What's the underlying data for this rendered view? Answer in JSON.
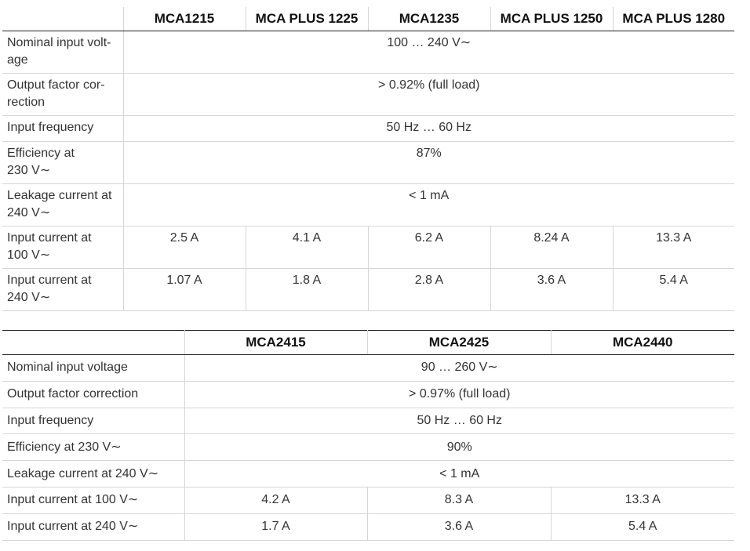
{
  "table1": {
    "header": {
      "corner": "",
      "models": [
        "MCA1215",
        "MCA PLUS 1225",
        "MCA1235",
        "MCA PLUS 1250",
        "MCA PLUS 1280"
      ]
    },
    "rows": {
      "nominal_input_voltage": {
        "label": "Nominal input volt-\nage",
        "value": "100 … 240 V∼"
      },
      "output_factor_correction": {
        "label": "Output factor cor-\nrection",
        "value": "> 0.92% (full load)"
      },
      "input_frequency": {
        "label": "Input frequency",
        "value": "50 Hz … 60 Hz"
      },
      "efficiency": {
        "label": "Efficiency at\n 230 V∼",
        "value": "87%"
      },
      "leakage_current": {
        "label": "Leakage current at\n 240 V∼",
        "value": "< 1 mA"
      },
      "input_current_100": {
        "label": "Input current at\n 100 V∼",
        "values": [
          "2.5 A",
          "4.1 A",
          "6.2 A",
          "8.24 A",
          "13.3 A"
        ]
      },
      "input_current_240": {
        "label": "Input current at\n 240 V∼",
        "values": [
          "1.07 A",
          "1.8 A",
          "2.8 A",
          "3.6 A",
          "5.4 A"
        ]
      }
    }
  },
  "table2": {
    "header": {
      "corner": "",
      "models": [
        "MCA2415",
        "MCA2425",
        "MCA2440"
      ]
    },
    "rows": {
      "nominal_input_voltage": {
        "label": "Nominal input voltage",
        "value": "90 … 260 V∼"
      },
      "output_factor_correction": {
        "label": "Output factor correction",
        "value": "> 0.97% (full load)"
      },
      "input_frequency": {
        "label": "Input frequency",
        "value": "50 Hz … 60 Hz"
      },
      "efficiency": {
        "label": "Efficiency at 230 V∼",
        "value": "90%"
      },
      "leakage_current": {
        "label": "Leakage current at 240 V∼",
        "value": "< 1 mA"
      },
      "input_current_100": {
        "label": "Input current at 100 V∼",
        "values": [
          "4.2 A",
          "8.3 A",
          "13.3 A"
        ]
      },
      "input_current_240": {
        "label": "Input current at 240 V∼",
        "values": [
          "1.7 A",
          "3.6 A",
          "5.4 A"
        ]
      }
    }
  }
}
